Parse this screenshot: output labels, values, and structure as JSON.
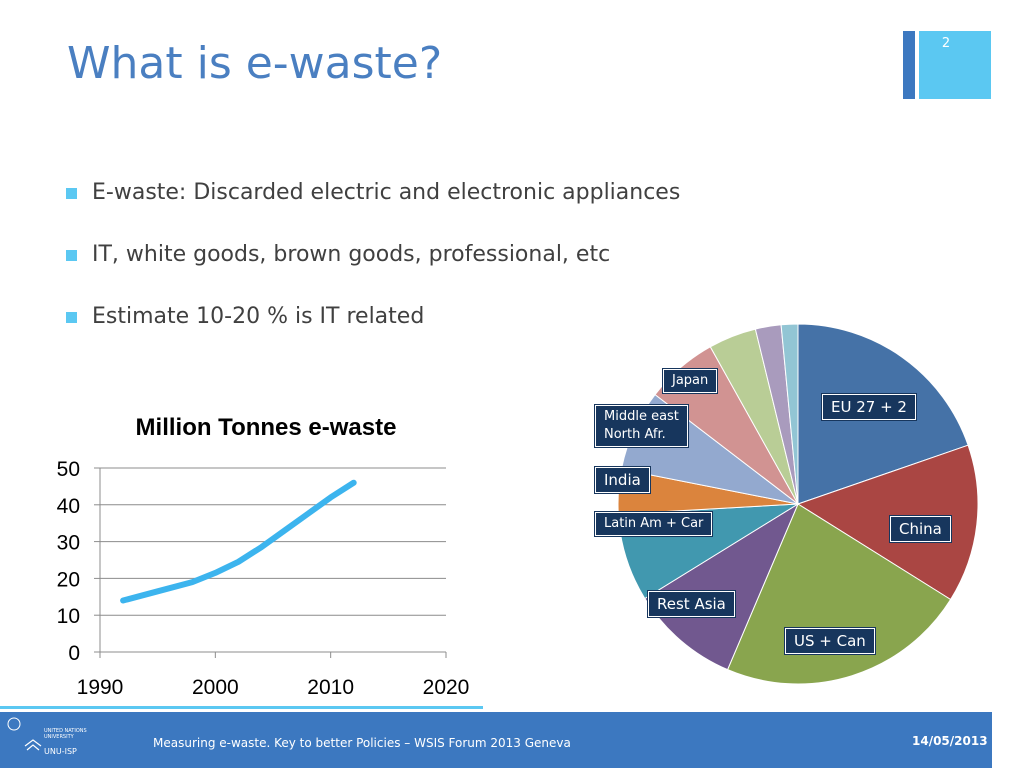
{
  "slide": {
    "title": "What is e-waste?",
    "number": "2",
    "bullets": [
      "E-waste: Discarded electric and electronic appliances",
      "IT, white goods, brown goods, professional, etc",
      "Estimate 10-20 % is IT related"
    ],
    "footer_text": "Measuring e-waste. Key to better Policies – WSIS Forum 2013 Geneva",
    "footer_date": "14/05/2013",
    "logo": {
      "line1": "UNITED NATIONS",
      "line2": "UNIVERSITY",
      "line3": "UNU-ISP"
    },
    "colors": {
      "title": "#4a7fc1",
      "accent": "#5bc8f2",
      "footer": "#3c78c0"
    }
  },
  "chart_data": [
    {
      "type": "line",
      "title": "Million Tonnes e-waste",
      "xlabel": "",
      "ylabel": "",
      "xlim": [
        1990,
        2020
      ],
      "ylim": [
        0,
        50
      ],
      "xticks": [
        1990,
        2000,
        2010,
        2020
      ],
      "yticks": [
        0,
        10,
        20,
        30,
        40,
        50
      ],
      "grid": true,
      "series": [
        {
          "color": "#3cb4ee",
          "x": [
            1992,
            1995,
            1998,
            2000,
            2002,
            2004,
            2006,
            2008,
            2010,
            2012
          ],
          "y": [
            14,
            16.5,
            19,
            21.5,
            24.5,
            28.5,
            33,
            37.5,
            42,
            46
          ]
        }
      ]
    },
    {
      "type": "pie",
      "slices": [
        {
          "label": "EU 27 + 2",
          "value": 19.7,
          "color": "#4572a7"
        },
        {
          "label": "China",
          "value": 14.2,
          "color": "#aa4643"
        },
        {
          "label": "US + Can",
          "value": 22.5,
          "color": "#89a54e"
        },
        {
          "label": "Rest Asia",
          "value": 9.8,
          "color": "#71588f"
        },
        {
          "label": "Latin Am + Car",
          "value": 7.9,
          "color": "#4198af"
        },
        {
          "label": "India",
          "value": 4.0,
          "color": "#db843d"
        },
        {
          "label": "Middle east North Afr.",
          "value": 7.3,
          "color": "#93a9cf"
        },
        {
          "label": "Japan",
          "value": 6.5,
          "color": "#d19392"
        },
        {
          "label": "",
          "value": 4.3,
          "color": "#b9cd96"
        },
        {
          "label": "",
          "value": 2.3,
          "color": "#a99bbd"
        },
        {
          "label": "",
          "value": 1.5,
          "color": "#92c5d4"
        }
      ]
    }
  ]
}
